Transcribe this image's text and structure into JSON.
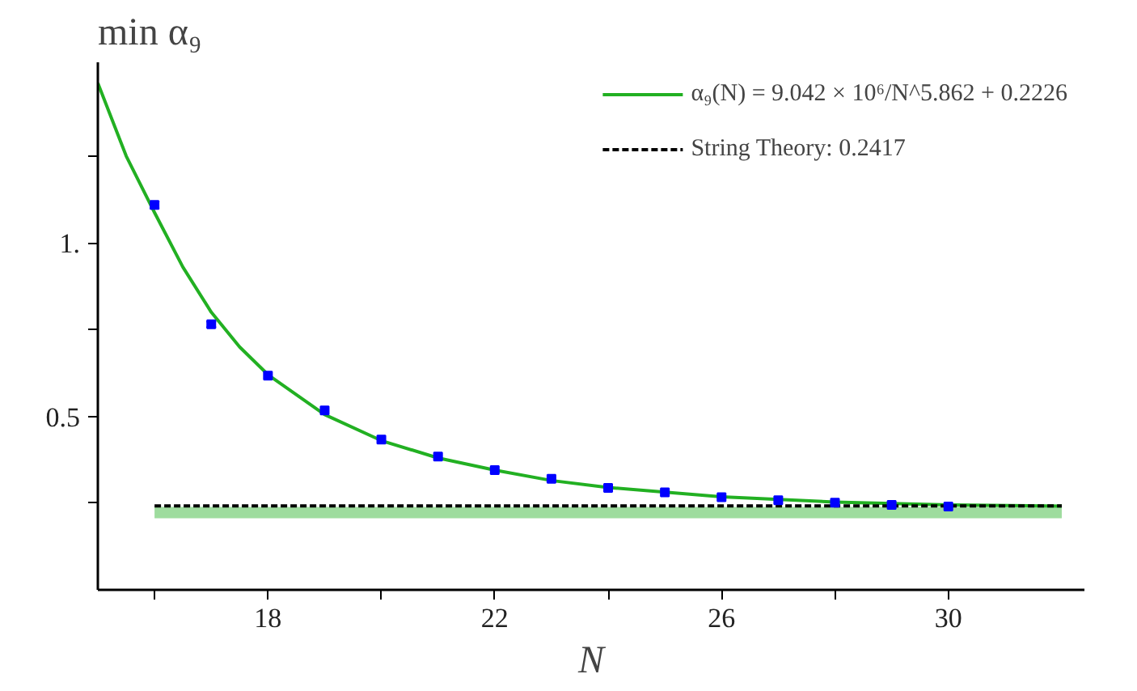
{
  "chart_data": {
    "type": "scatter",
    "xlabel": "N",
    "ylabel": "min α₉",
    "xlim": [
      15,
      32.4
    ],
    "ylim": [
      0,
      1.52
    ],
    "xticks": [
      {
        "value": 16,
        "label": null
      },
      18,
      {
        "value": 20,
        "label": null
      },
      22,
      {
        "value": 24,
        "label": null
      },
      26,
      {
        "value": 28,
        "label": null
      },
      30
    ],
    "yticks": [
      {
        "value": 0.25,
        "label": null
      },
      0.5,
      {
        "value": 0.75,
        "label": null
      },
      {
        "value": 1,
        "label": "1."
      },
      {
        "value": 1.25,
        "label": null
      }
    ],
    "grid": false,
    "legend": "top right",
    "marker": "square",
    "series": [
      {
        "type": "line",
        "marker": "none",
        "color": "#9edc9e",
        "x": [
          16,
          32
        ],
        "values": [
          0.2226,
          0.2226
        ]
      },
      {
        "type": "line",
        "marker": "none",
        "name": "α₉(N) = 9.042 × 10⁶/N^5.862 + 0.2226",
        "color": "#22b022",
        "x": [
          15,
          15.5,
          16,
          16.5,
          17,
          17.5,
          18,
          19,
          20,
          21,
          22,
          23,
          24,
          26,
          28,
          30,
          32
        ],
        "values": [
          1.46,
          1.25,
          1.087,
          0.93,
          0.8,
          0.7,
          0.62,
          0.505,
          0.43,
          0.38,
          0.345,
          0.315,
          0.295,
          0.268,
          0.253,
          0.245,
          0.241
        ]
      },
      {
        "type": "line",
        "marker": "none",
        "name": "String Theory: 0.2417",
        "color": "#000000",
        "line_style": "dashed",
        "x": [
          16,
          32
        ],
        "values": [
          0.2417,
          0.2417
        ]
      },
      {
        "color": "#0000ff",
        "x": [
          16,
          17,
          18,
          19,
          20,
          21,
          22,
          23,
          24,
          25,
          26,
          27,
          28,
          29,
          30
        ],
        "values": [
          1.109,
          0.765,
          0.617,
          0.517,
          0.433,
          0.384,
          0.345,
          0.32,
          0.294,
          0.281,
          0.267,
          0.258,
          0.251,
          0.245,
          0.24
        ],
        "errors": [
          0.01,
          0.008,
          null,
          null,
          null,
          null,
          null,
          null,
          null,
          null,
          null,
          null,
          null,
          null,
          null
        ]
      }
    ]
  }
}
